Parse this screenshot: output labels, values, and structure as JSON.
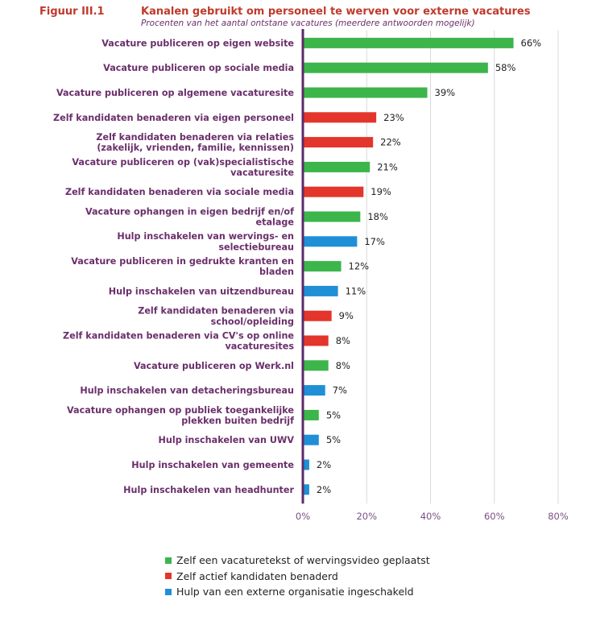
{
  "header": {
    "figure_label": "Figuur III.1",
    "title": "Kanalen gebruikt om personeel te werven voor externe vacatures",
    "subtitle": "Procenten van het aantal ontstane vacatures (meerdere antwoorden mogelijk)"
  },
  "colors": {
    "green": "#3cb54a",
    "red": "#e3352b",
    "blue": "#1f8fd6",
    "axis": "#5b2a6b",
    "grid": "#d9d9d9"
  },
  "chart_data": {
    "type": "bar",
    "orientation": "horizontal",
    "xlim": [
      0,
      80
    ],
    "x_ticks": [
      "0%",
      "20%",
      "40%",
      "60%",
      "80%"
    ],
    "grid": "vertical",
    "legend_position": "bottom",
    "series": [
      {
        "name": "Zelf een vacaturetekst of wervingsvideo geplaatst",
        "color_key": "green"
      },
      {
        "name": "Zelf actief kandidaten benaderd",
        "color_key": "red"
      },
      {
        "name": "Hulp van een externe organisatie ingeschakeld",
        "color_key": "blue"
      }
    ],
    "bars": [
      {
        "label": [
          "Vacature publiceren op eigen website"
        ],
        "value": 66,
        "value_label": "66%",
        "series": 0
      },
      {
        "label": [
          "Vacature publiceren op sociale media"
        ],
        "value": 58,
        "value_label": "58%",
        "series": 0
      },
      {
        "label": [
          "Vacature publiceren op algemene vacaturesite"
        ],
        "value": 39,
        "value_label": "39%",
        "series": 0
      },
      {
        "label": [
          "Zelf kandidaten benaderen via eigen personeel"
        ],
        "value": 23,
        "value_label": "23%",
        "series": 1
      },
      {
        "label": [
          "Zelf kandidaten benaderen via relaties",
          "(zakelijk, vrienden, familie, kennissen)"
        ],
        "value": 22,
        "value_label": "22%",
        "series": 1
      },
      {
        "label": [
          "Vacature publiceren op (vak)specialistische",
          "vacaturesite"
        ],
        "value": 21,
        "value_label": "21%",
        "series": 0
      },
      {
        "label": [
          "Zelf kandidaten benaderen via sociale media"
        ],
        "value": 19,
        "value_label": "19%",
        "series": 1
      },
      {
        "label": [
          "Vacature ophangen in eigen bedrijf en/of",
          "etalage"
        ],
        "value": 18,
        "value_label": "18%",
        "series": 0
      },
      {
        "label": [
          "Hulp inschakelen van wervings- en",
          "selectiebureau"
        ],
        "value": 17,
        "value_label": "17%",
        "series": 2
      },
      {
        "label": [
          "Vacature publiceren in gedrukte kranten en",
          "bladen"
        ],
        "value": 12,
        "value_label": "12%",
        "series": 0
      },
      {
        "label": [
          "Hulp inschakelen van uitzendbureau"
        ],
        "value": 11,
        "value_label": "11%",
        "series": 2
      },
      {
        "label": [
          "Zelf kandidaten benaderen via",
          "school/opleiding"
        ],
        "value": 9,
        "value_label": "9%",
        "series": 1
      },
      {
        "label": [
          "Zelf kandidaten benaderen via CV's op online",
          "vacaturesites"
        ],
        "value": 8,
        "value_label": "8%",
        "series": 1
      },
      {
        "label": [
          "Vacature publiceren op Werk.nl"
        ],
        "value": 8,
        "value_label": "8%",
        "series": 0
      },
      {
        "label": [
          "Hulp inschakelen van detacheringsbureau"
        ],
        "value": 7,
        "value_label": "7%",
        "series": 2
      },
      {
        "label": [
          "Vacature ophangen op publiek toegankelijke",
          "plekken buiten bedrijf"
        ],
        "value": 5,
        "value_label": "5%",
        "series": 0
      },
      {
        "label": [
          "Hulp inschakelen van UWV"
        ],
        "value": 5,
        "value_label": "5%",
        "series": 2
      },
      {
        "label": [
          "Hulp inschakelen van gemeente"
        ],
        "value": 2,
        "value_label": "2%",
        "series": 2
      },
      {
        "label": [
          "Hulp inschakelen van headhunter"
        ],
        "value": 2,
        "value_label": "2%",
        "series": 2
      }
    ]
  }
}
